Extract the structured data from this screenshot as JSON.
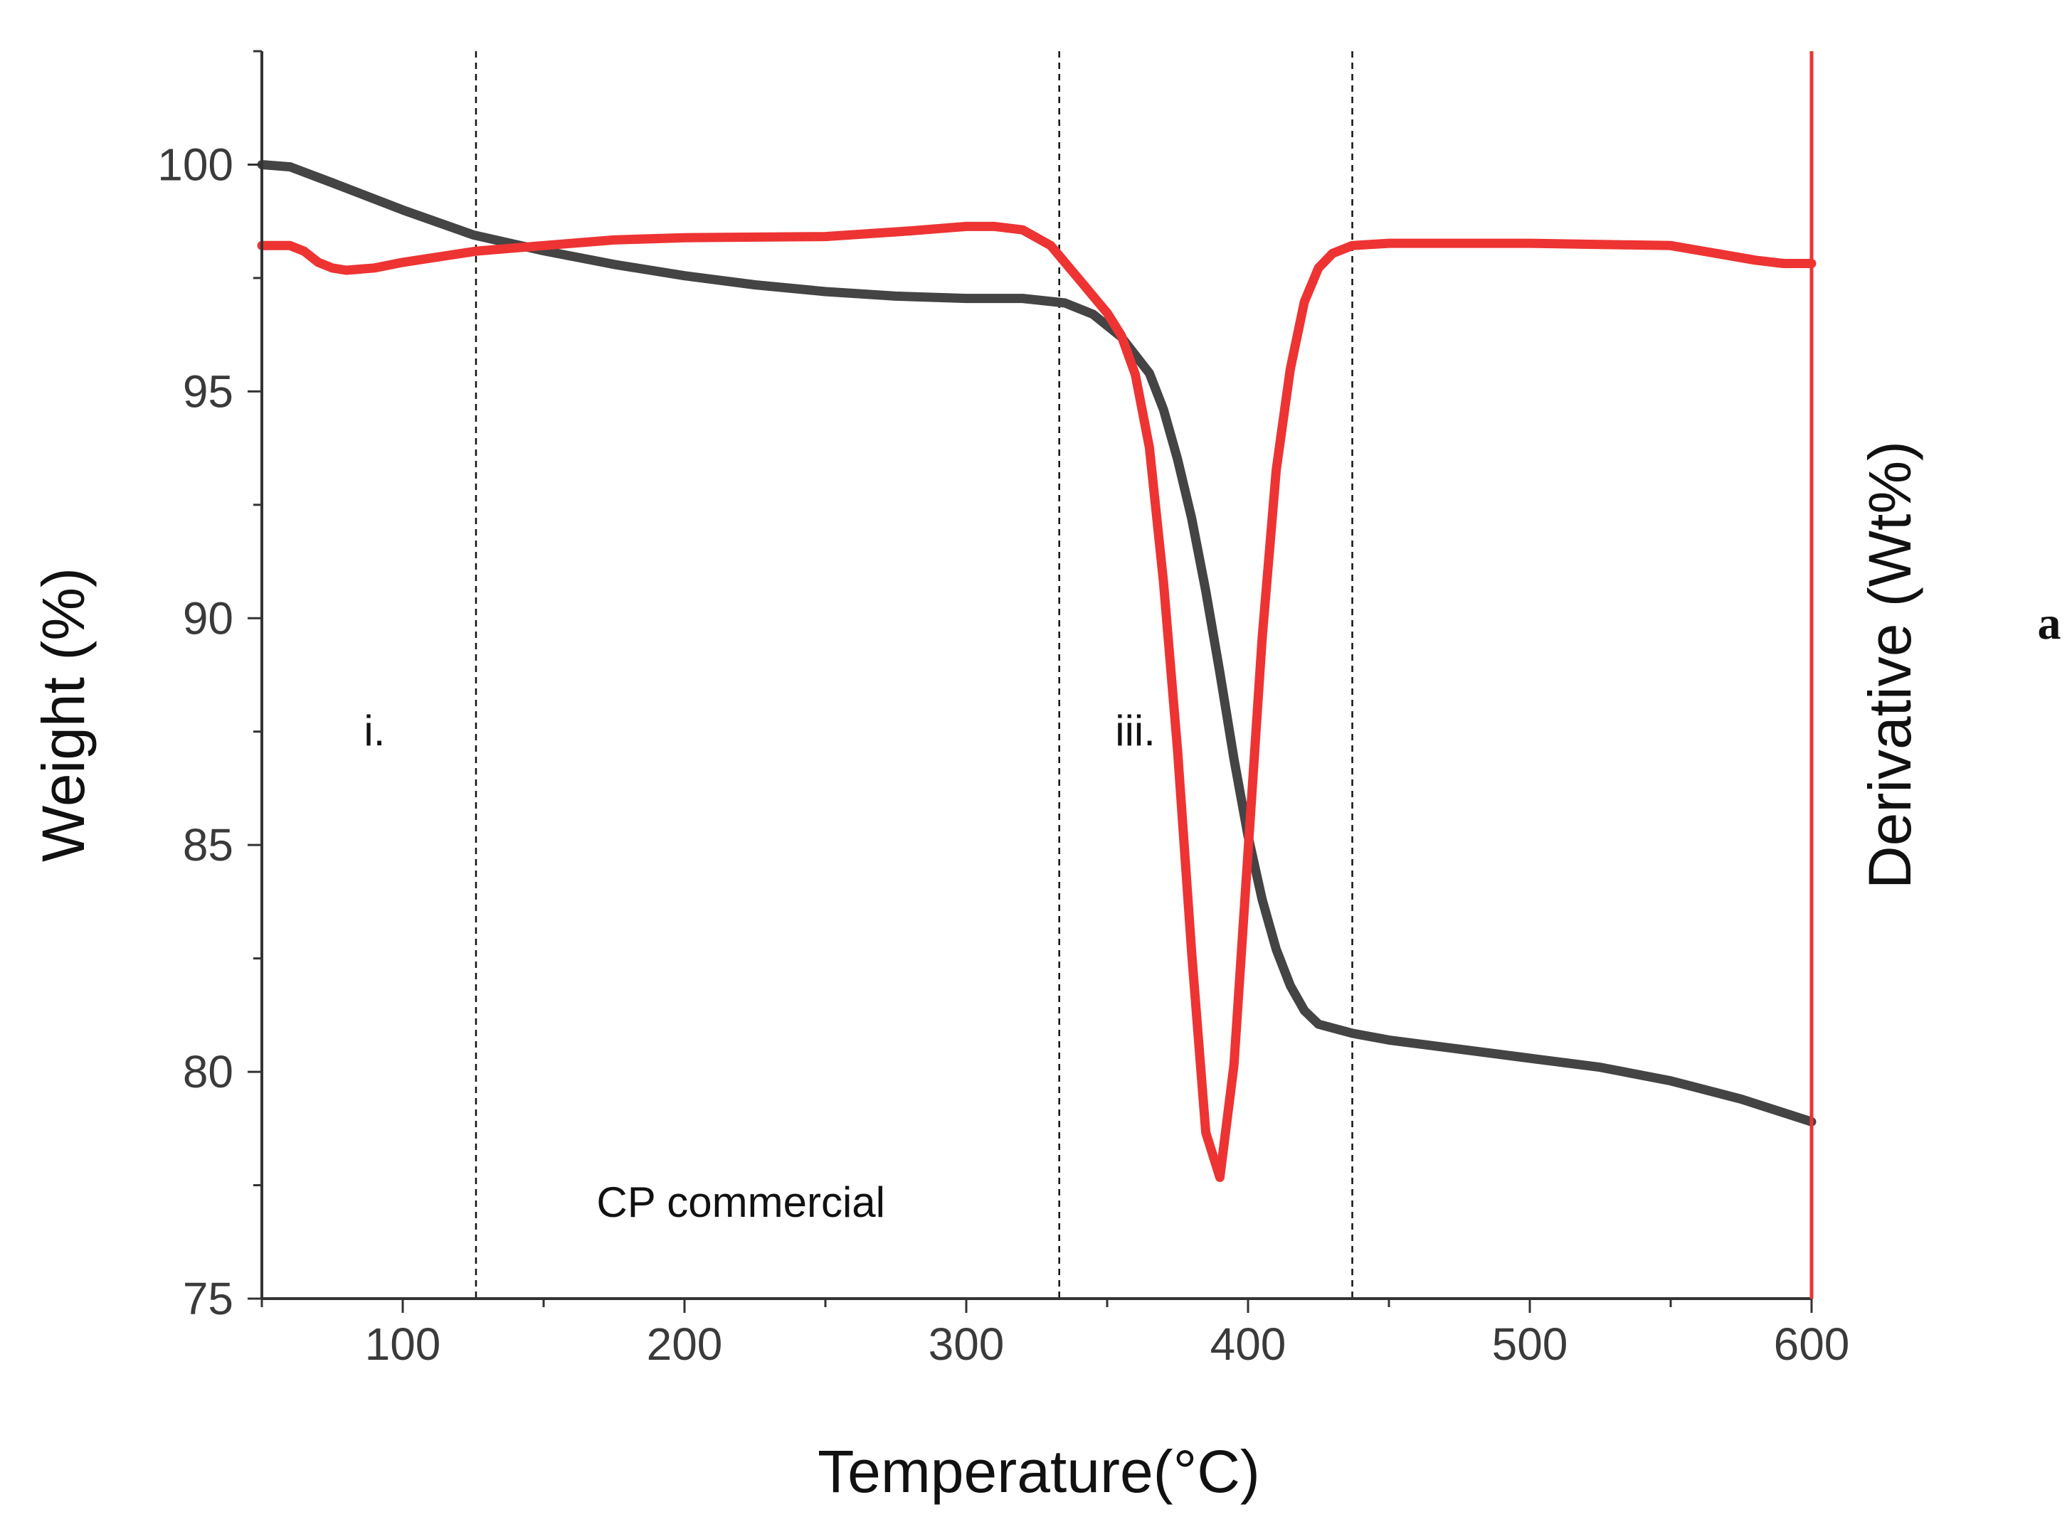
{
  "chart_data": {
    "type": "line",
    "title": "",
    "xlabel": "Temperature(°C)",
    "ylabel": "Weight (%)",
    "y2label": "Derivative (Wt%)",
    "xlim": [
      50,
      600
    ],
    "ylim": [
      75,
      102.5
    ],
    "y2lim": [
      0,
      1
    ],
    "xticks": [
      100,
      200,
      300,
      400,
      500,
      600
    ],
    "yticks": [
      75,
      80,
      85,
      90,
      95,
      100
    ],
    "grid": false,
    "legend": "none",
    "colors": {
      "weight": "#444444",
      "derivative": "#ee3333",
      "right_axis": "#ee3333",
      "axis": "#333333"
    },
    "vlines": [
      126,
      333,
      437
    ],
    "annotations": [
      {
        "text": "i.",
        "x": 90,
        "y": 87.2
      },
      {
        "text": "iii.",
        "x": 360,
        "y": 87.2
      },
      {
        "text": "CP commercial",
        "x": 220,
        "y": 76.8
      }
    ],
    "panel_label": "a",
    "series": [
      {
        "name": "Weight",
        "axis": "left",
        "x": [
          50,
          60,
          75,
          100,
          125,
          150,
          175,
          200,
          225,
          250,
          275,
          300,
          320,
          335,
          345,
          355,
          365,
          370,
          375,
          380,
          385,
          390,
          395,
          400,
          405,
          410,
          415,
          420,
          425,
          437,
          450,
          475,
          500,
          525,
          550,
          575,
          600
        ],
        "values": [
          100.0,
          99.95,
          99.6,
          99.0,
          98.45,
          98.1,
          97.8,
          97.55,
          97.35,
          97.2,
          97.1,
          97.05,
          97.05,
          96.95,
          96.7,
          96.2,
          95.4,
          94.6,
          93.5,
          92.2,
          90.6,
          88.8,
          86.9,
          85.2,
          83.8,
          82.7,
          81.9,
          81.35,
          81.05,
          80.85,
          80.7,
          80.5,
          80.3,
          80.1,
          79.8,
          79.4,
          78.9
        ]
      },
      {
        "name": "Derivative",
        "axis": "right",
        "x": [
          50,
          60,
          65,
          70,
          75,
          80,
          90,
          100,
          126,
          150,
          175,
          200,
          250,
          280,
          300,
          310,
          320,
          330,
          340,
          350,
          355,
          360,
          365,
          370,
          375,
          380,
          385,
          390,
          395,
          400,
          405,
          410,
          415,
          420,
          425,
          430,
          437,
          450,
          500,
          550,
          580,
          590,
          600
        ],
        "values": [
          0.9,
          0.9,
          0.895,
          0.885,
          0.88,
          0.878,
          0.88,
          0.885,
          0.895,
          0.9,
          0.905,
          0.907,
          0.908,
          0.913,
          0.917,
          0.917,
          0.914,
          0.9,
          0.87,
          0.84,
          0.82,
          0.785,
          0.72,
          0.6,
          0.45,
          0.27,
          0.11,
          0.07,
          0.17,
          0.36,
          0.55,
          0.7,
          0.79,
          0.85,
          0.88,
          0.893,
          0.9,
          0.902,
          0.902,
          0.9,
          0.887,
          0.884,
          0.884
        ]
      }
    ]
  }
}
